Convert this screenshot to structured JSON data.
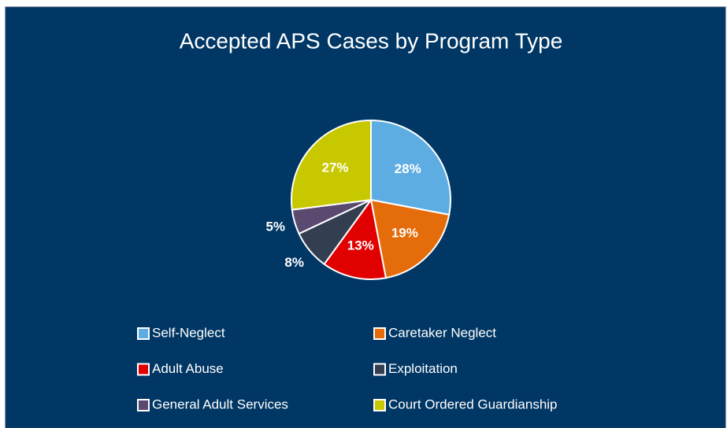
{
  "chart_data": {
    "type": "pie",
    "title": "Accepted APS Cases by Program Type",
    "categories": [
      "Self-Neglect",
      "Caretaker Neglect",
      "Adult Abuse",
      "Exploitation",
      "General Adult Services",
      "Court Ordered Guardianship"
    ],
    "values": [
      28,
      19,
      13,
      8,
      5,
      27
    ],
    "value_labels": [
      "28%",
      "19%",
      "13%",
      "8%",
      "5%",
      "27%"
    ],
    "colors": [
      "#5dade2",
      "#e46c0a",
      "#e00000",
      "#333f50",
      "#5b4a70",
      "#c8c800"
    ],
    "legend": "bottom"
  }
}
